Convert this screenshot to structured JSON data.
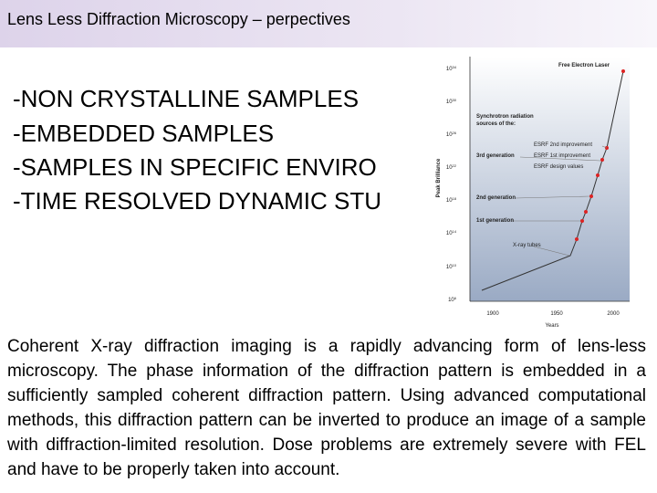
{
  "header": {
    "title": "Lens Less Diffraction Microscopy – perpectives"
  },
  "bullets": [
    "-NON CRYSTALLINE SAMPLES",
    "-EMBEDDED SAMPLES",
    "-SAMPLES IN SPECIFIC ENVIRO",
    "-TIME RESOLVED DYNAMIC STU"
  ],
  "figure": {
    "y_label": "Peak Brilliance",
    "x_label": "Years",
    "y_ticks": [
      {
        "base": "10",
        "exp": "34"
      },
      {
        "base": "10",
        "exp": "30"
      },
      {
        "base": "10",
        "exp": "26"
      },
      {
        "base": "10",
        "exp": "22"
      },
      {
        "base": "10",
        "exp": "18"
      },
      {
        "base": "10",
        "exp": "14"
      },
      {
        "base": "10",
        "exp": "10"
      },
      {
        "base": "10",
        "exp": "6"
      }
    ],
    "x_ticks": [
      "1900",
      "1950",
      "2000"
    ],
    "annotations": [
      "Free Electron Laser",
      "Synchrotron radiation",
      "sources of the:",
      "3rd generation",
      "ESRF 2nd improvement",
      "ESRF 1st improvement",
      "ESRF design values",
      "2nd generation",
      "1st generation",
      "X-ray tubes"
    ]
  },
  "body": {
    "paragraph": "Coherent X-ray diffraction imaging is a rapidly advancing form of lens-less microscopy. The phase information of the diffraction pattern is embedded in a sufficiently sampled coherent diffraction pattern. Using advanced computational methods, this diffraction pattern can be inverted to produce an image of a sample with diffraction-limited resolution. Dose problems are extremely severe with FEL and have to be properly taken into account."
  }
}
